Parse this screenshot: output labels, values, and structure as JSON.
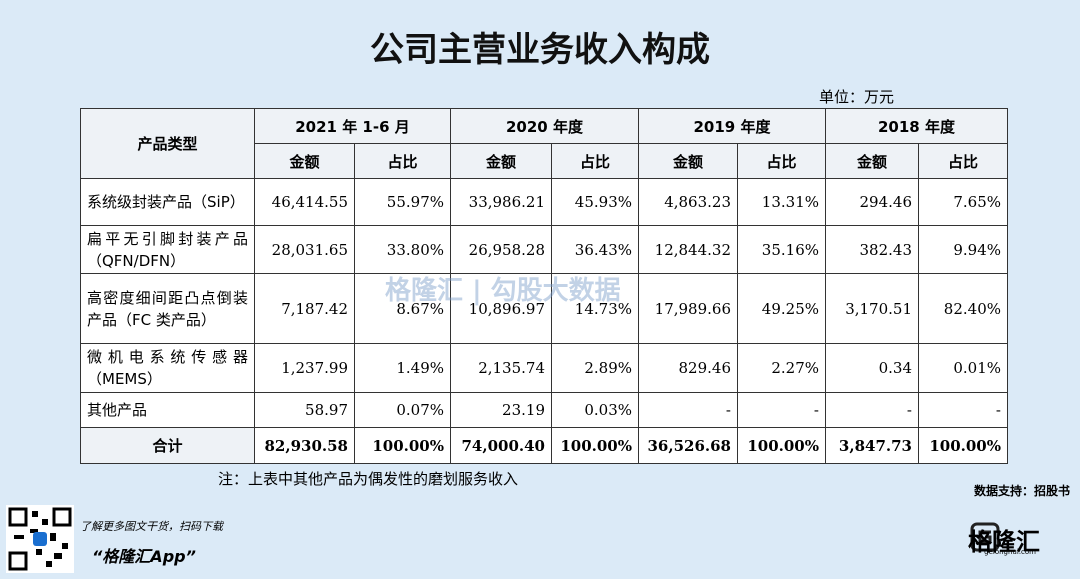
{
  "header": {
    "title": "公司主营业务收入构成",
    "unit": "单位：万元"
  },
  "table": {
    "corner": "产品类型",
    "periods": [
      "2021 年 1-6 月",
      "2020 年度",
      "2019 年度",
      "2018 年度"
    ],
    "subheaders": [
      "金额",
      "占比"
    ],
    "rows": [
      {
        "name": "系统级封装产品（SiP）",
        "cells": [
          "46,414.55",
          "55.97%",
          "33,986.21",
          "45.93%",
          "4,863.23",
          "13.31%",
          "294.46",
          "7.65%"
        ]
      },
      {
        "name": "扁平无引脚封装产品（QFN/DFN）",
        "cells": [
          "28,031.65",
          "33.80%",
          "26,958.28",
          "36.43%",
          "12,844.32",
          "35.16%",
          "382.43",
          "9.94%"
        ]
      },
      {
        "name": "高密度细间距凸点倒装产品（FC 类产品）",
        "cells": [
          "7,187.42",
          "8.67%",
          "10,896.97",
          "14.73%",
          "17,989.66",
          "49.25%",
          "3,170.51",
          "82.40%"
        ]
      },
      {
        "name": "微机电系统传感器（MEMS）",
        "cells": [
          "1,237.99",
          "1.49%",
          "2,135.74",
          "2.89%",
          "829.46",
          "2.27%",
          "0.34",
          "0.01%"
        ]
      },
      {
        "name": "其他产品",
        "cells": [
          "58.97",
          "0.07%",
          "23.19",
          "0.03%",
          "-",
          "-",
          "-",
          "-"
        ]
      }
    ],
    "total": {
      "name": "合计",
      "cells": [
        "82,930.58",
        "100.00%",
        "74,000.40",
        "100.00%",
        "36,526.68",
        "100.00%",
        "3,847.73",
        "100.00%"
      ]
    }
  },
  "note": "注：上表中其他产品为偶发性的磨划服务收入",
  "source": "数据支持：招股书",
  "watermark": {
    "brand": "格隆汇",
    "product": "勾股大数据"
  },
  "footer": {
    "prompt": "了解更多图文干货，扫码下载",
    "app": "“格隆汇App”",
    "logo": "格隆汇",
    "site": "gelonghui.com"
  }
}
